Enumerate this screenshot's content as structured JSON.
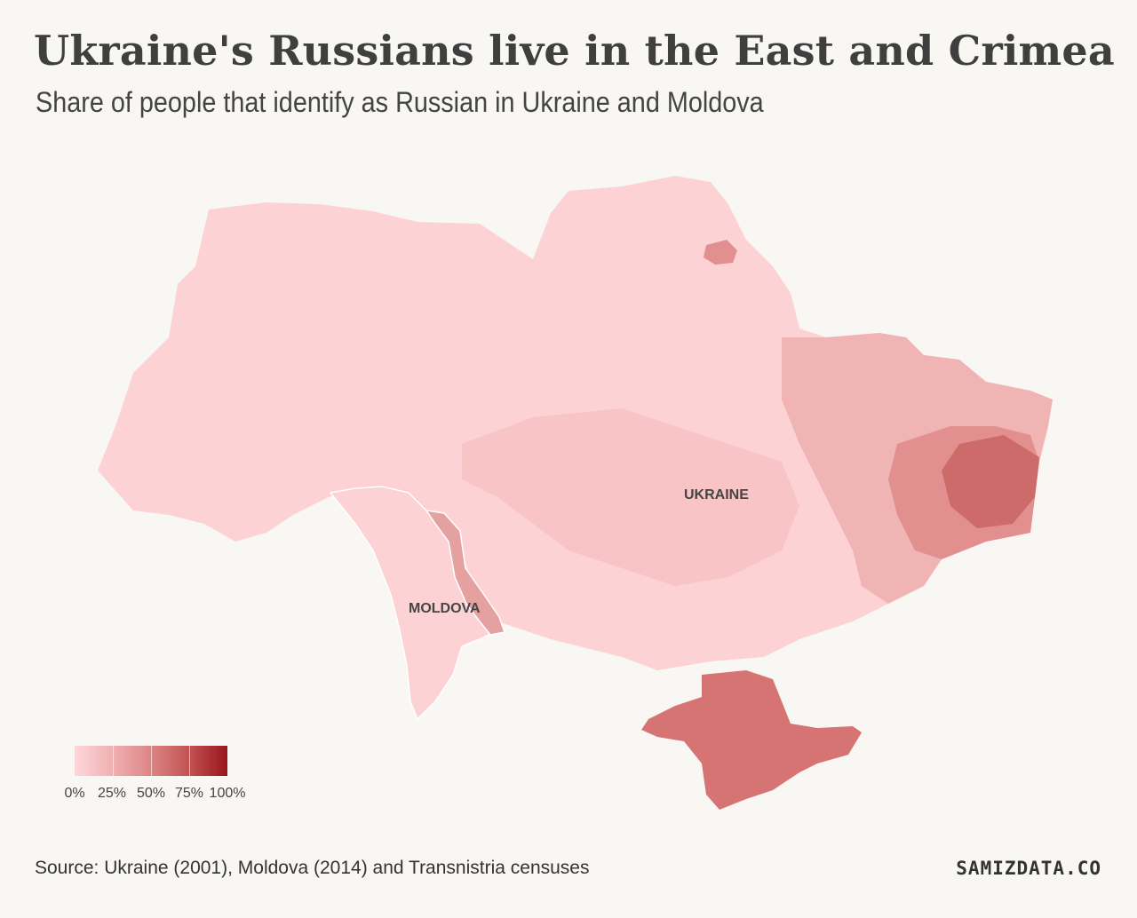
{
  "header": {
    "title": "Ukraine's Russians live in the East and Crimea",
    "subtitle": "Share of people that identify as Russian in Ukraine and Moldova"
  },
  "map": {
    "labels": {
      "ukraine": "UKRAINE",
      "moldova": "MOLDOVA"
    },
    "colors": {
      "background": "#f9f7f3",
      "base": "#fdd2d4",
      "central": "#f8c4c6",
      "east": "#f0b4b4",
      "donbas": "#e18f8f",
      "donbas_core": "#cd6a6a",
      "crimea": "#d67373",
      "transnistria": "#e5a0a0",
      "border": "#ffffff"
    }
  },
  "legend": {
    "labels": [
      "0%",
      "25%",
      "50%",
      "75%",
      "100%"
    ],
    "stops": [
      0,
      25,
      50,
      75,
      100
    ],
    "colors": [
      "#ffd7db",
      "#f0b0b2",
      "#dd8585",
      "#c25252",
      "#99151c"
    ]
  },
  "footer": {
    "source": "Source: Ukraine (2001), Moldova (2014) and Transnistria censuses",
    "brand": "SAMIZDATA.CO"
  }
}
